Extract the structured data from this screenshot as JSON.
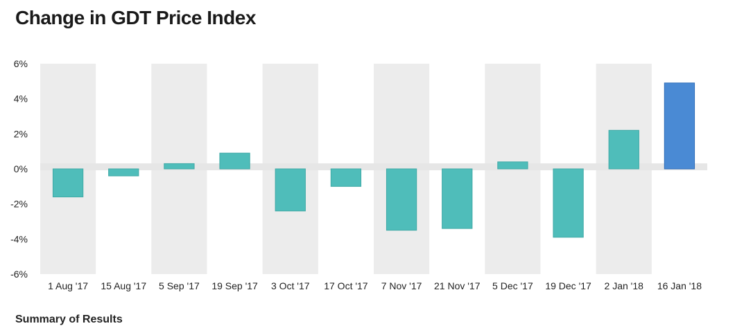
{
  "title": "Change in GDT Price Index",
  "footer_text": "Summary of Results",
  "colors": {
    "positive_bar": "#4fbdba",
    "negative_bar": "#4fbdba",
    "highlight_bar": "#4a8ad4",
    "band": "#ececec",
    "zero_band": "#e6e6e6"
  },
  "chart_data": {
    "type": "bar",
    "title": "Change in GDT Price Index",
    "xlabel": "",
    "ylabel": "",
    "categories": [
      "1 Aug '17",
      "15 Aug '17",
      "5 Sep '17",
      "19 Sep '17",
      "3 Oct '17",
      "17 Oct '17",
      "7 Nov '17",
      "21 Nov '17",
      "5 Dec '17",
      "19 Dec '17",
      "2 Jan '18",
      "16 Jan '18"
    ],
    "values": [
      -1.6,
      -0.4,
      0.3,
      0.9,
      -2.4,
      -1.0,
      -3.5,
      -3.4,
      0.4,
      -3.9,
      2.2,
      4.9
    ],
    "highlight_index": 11,
    "ylim": [
      -6,
      6
    ],
    "yticks": [
      6,
      4,
      2,
      0,
      -2,
      -4,
      -6
    ],
    "ytick_labels": [
      "6%",
      "4%",
      "2%",
      "0%",
      "-2%",
      "-4%",
      "-6%"
    ],
    "grid": false,
    "alternating_bands": true
  }
}
